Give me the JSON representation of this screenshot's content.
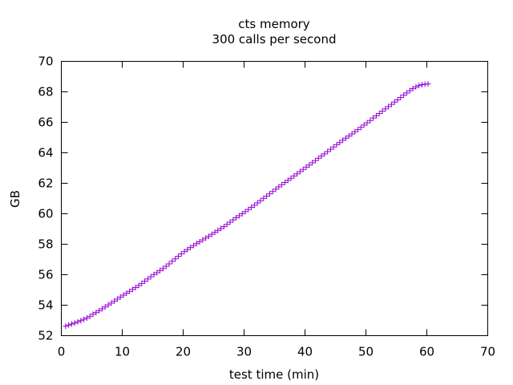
{
  "chart_data": {
    "type": "scatter",
    "title": "cts memory",
    "subtitle": "300 calls per second",
    "xlabel": "test time (min)",
    "ylabel": "GB",
    "xlim": [
      0,
      70
    ],
    "ylim": [
      52,
      70
    ],
    "xticks": [
      0,
      10,
      20,
      30,
      40,
      50,
      60,
      70
    ],
    "yticks": [
      52,
      54,
      56,
      58,
      60,
      62,
      64,
      66,
      68,
      70
    ],
    "grid": false,
    "legend": "none",
    "marker": "plus",
    "series": [
      {
        "color": "#9400d3",
        "points": [
          [
            0.7,
            52.62
          ],
          [
            1.2,
            52.7
          ],
          [
            1.7,
            52.76
          ],
          [
            2.2,
            52.83
          ],
          [
            2.7,
            52.91
          ],
          [
            3.2,
            52.99
          ],
          [
            3.7,
            53.07
          ],
          [
            4.2,
            53.16
          ],
          [
            4.7,
            53.27
          ],
          [
            5.2,
            53.41
          ],
          [
            5.7,
            53.52
          ],
          [
            6.2,
            53.64
          ],
          [
            6.7,
            53.76
          ],
          [
            7.2,
            53.89
          ],
          [
            7.7,
            54.02
          ],
          [
            8.2,
            54.14
          ],
          [
            8.7,
            54.27
          ],
          [
            9.2,
            54.4
          ],
          [
            9.7,
            54.53
          ],
          [
            10.2,
            54.66
          ],
          [
            10.7,
            54.78
          ],
          [
            11.2,
            54.91
          ],
          [
            11.7,
            55.04
          ],
          [
            12.2,
            55.16
          ],
          [
            12.7,
            55.29
          ],
          [
            13.2,
            55.43
          ],
          [
            13.7,
            55.57
          ],
          [
            14.2,
            55.72
          ],
          [
            14.7,
            55.87
          ],
          [
            15.2,
            56.01
          ],
          [
            15.7,
            56.14
          ],
          [
            16.2,
            56.27
          ],
          [
            16.7,
            56.4
          ],
          [
            17.2,
            56.55
          ],
          [
            17.7,
            56.71
          ],
          [
            18.2,
            56.88
          ],
          [
            18.7,
            57.04
          ],
          [
            19.2,
            57.21
          ],
          [
            19.7,
            57.37
          ],
          [
            20.2,
            57.52
          ],
          [
            20.7,
            57.65
          ],
          [
            21.2,
            57.78
          ],
          [
            21.7,
            57.91
          ],
          [
            22.2,
            58.04
          ],
          [
            22.7,
            58.16
          ],
          [
            23.2,
            58.28
          ],
          [
            23.7,
            58.4
          ],
          [
            24.2,
            58.52
          ],
          [
            24.7,
            58.65
          ],
          [
            25.2,
            58.78
          ],
          [
            25.7,
            58.91
          ],
          [
            26.2,
            59.03
          ],
          [
            26.7,
            59.16
          ],
          [
            27.2,
            59.3
          ],
          [
            27.7,
            59.45
          ],
          [
            28.2,
            59.6
          ],
          [
            28.7,
            59.74
          ],
          [
            29.2,
            59.87
          ],
          [
            29.7,
            60.0
          ],
          [
            30.2,
            60.14
          ],
          [
            30.7,
            60.28
          ],
          [
            31.2,
            60.42
          ],
          [
            31.7,
            60.56
          ],
          [
            32.2,
            60.71
          ],
          [
            32.7,
            60.86
          ],
          [
            33.2,
            61.01
          ],
          [
            33.7,
            61.16
          ],
          [
            34.2,
            61.31
          ],
          [
            34.7,
            61.46
          ],
          [
            35.2,
            61.61
          ],
          [
            35.7,
            61.76
          ],
          [
            36.2,
            61.91
          ],
          [
            36.7,
            62.05
          ],
          [
            37.2,
            62.19
          ],
          [
            37.7,
            62.33
          ],
          [
            38.2,
            62.48
          ],
          [
            38.7,
            62.62
          ],
          [
            39.2,
            62.77
          ],
          [
            39.7,
            62.91
          ],
          [
            40.2,
            63.06
          ],
          [
            40.7,
            63.2
          ],
          [
            41.2,
            63.35
          ],
          [
            41.7,
            63.49
          ],
          [
            42.2,
            63.64
          ],
          [
            42.7,
            63.78
          ],
          [
            43.2,
            63.93
          ],
          [
            43.7,
            64.08
          ],
          [
            44.2,
            64.23
          ],
          [
            44.7,
            64.38
          ],
          [
            45.2,
            64.53
          ],
          [
            45.7,
            64.67
          ],
          [
            46.2,
            64.82
          ],
          [
            46.7,
            64.96
          ],
          [
            47.2,
            65.1
          ],
          [
            47.7,
            65.24
          ],
          [
            48.2,
            65.38
          ],
          [
            48.7,
            65.52
          ],
          [
            49.2,
            65.67
          ],
          [
            49.7,
            65.82
          ],
          [
            50.2,
            65.97
          ],
          [
            50.7,
            66.12
          ],
          [
            51.2,
            66.28
          ],
          [
            51.7,
            66.43
          ],
          [
            52.2,
            66.58
          ],
          [
            52.7,
            66.73
          ],
          [
            53.2,
            66.88
          ],
          [
            53.7,
            67.03
          ],
          [
            54.2,
            67.18
          ],
          [
            54.7,
            67.33
          ],
          [
            55.2,
            67.48
          ],
          [
            55.7,
            67.63
          ],
          [
            56.2,
            67.78
          ],
          [
            56.7,
            67.93
          ],
          [
            57.2,
            68.08
          ],
          [
            57.7,
            68.21
          ],
          [
            58.2,
            68.32
          ],
          [
            58.7,
            68.41
          ],
          [
            59.2,
            68.47
          ],
          [
            59.7,
            68.5
          ],
          [
            60.2,
            68.52
          ]
        ]
      }
    ]
  }
}
